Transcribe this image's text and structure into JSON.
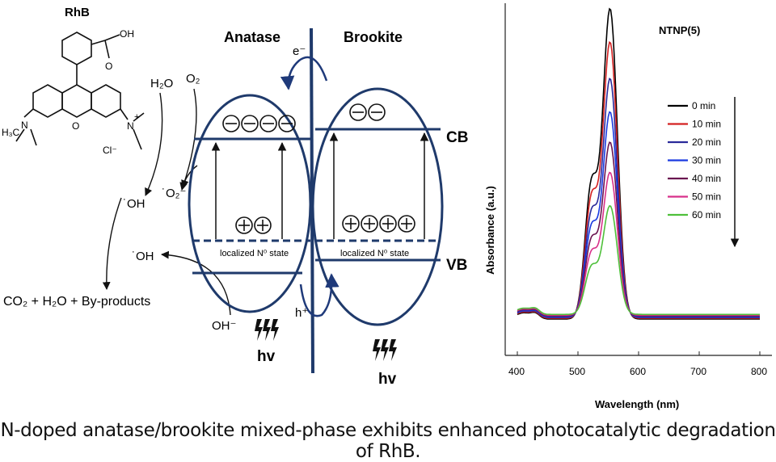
{
  "rhb": {
    "name": "RhB",
    "cooh": "OH",
    "cooh_o": "O",
    "left_amine_h3c": "H₃C",
    "left_amine_n": "N",
    "right_amine_n": "N",
    "chloride": "Cl⁻",
    "ring_o": "O",
    "plus": "+"
  },
  "left_chem": {
    "h2o": "H₂O",
    "o2": "O₂",
    "oh_radical_1": "˙OH",
    "o2_radical": "˙O₂⁻",
    "oh_radical_2": "˙OH",
    "oh_minus": "OH⁻",
    "products": "CO₂ + H₂O + By-products"
  },
  "band_diagram": {
    "anatase": "Anatase",
    "brookite": "Brookite",
    "electron": "e⁻",
    "hole": "h⁺",
    "cb": "CB",
    "vb": "VB",
    "localized_anatase": "localized N⁰ state",
    "localized_brookite": "localized N⁰ state",
    "hv_left": "hv",
    "hv_right": "hv",
    "anatase_electrons": 4,
    "anatase_holes": 2,
    "brookite_electrons": 2,
    "brookite_holes": 4
  },
  "chart_data": {
    "type": "line",
    "title": "NTNP(5)",
    "xlabel": "Wavelength (nm)",
    "ylabel": "Absorbance (a.u.)",
    "xlim": [
      380,
      820
    ],
    "x_ticks": [
      400,
      500,
      600,
      700,
      800
    ],
    "legend_position": "top-right",
    "series": [
      {
        "name": "0 min",
        "color": "#000000",
        "peak": 1.0
      },
      {
        "name": "10 min",
        "color": "#d42020",
        "peak": 0.89
      },
      {
        "name": "20 min",
        "color": "#2a2a9a",
        "peak": 0.77
      },
      {
        "name": "30 min",
        "color": "#1a3ae0",
        "peak": 0.66
      },
      {
        "name": "40 min",
        "color": "#6a1450",
        "peak": 0.56
      },
      {
        "name": "50 min",
        "color": "#d8308a",
        "peak": 0.46
      },
      {
        "name": "60 min",
        "color": "#4ec03a",
        "peak": 0.35
      }
    ]
  },
  "caption": "N-doped anatase/brookite mixed-phase exhibits enhanced photocatalytic degradation of RhB."
}
